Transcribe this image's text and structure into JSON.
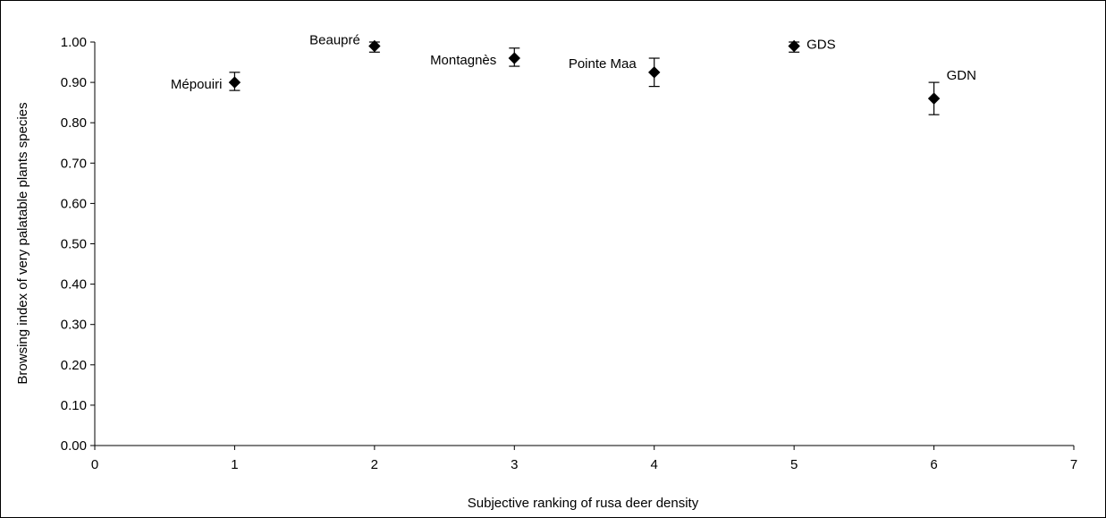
{
  "chart_data": {
    "type": "scatter",
    "title": "",
    "xlabel": "Subjective ranking of rusa deer density",
    "ylabel": "Browsing index of very palatable plants species",
    "xlim": [
      0,
      7
    ],
    "ylim": [
      0,
      1
    ],
    "x_ticks": [
      0,
      1,
      2,
      3,
      4,
      5,
      6,
      7
    ],
    "y_ticks": [
      "0.00",
      "0.10",
      "0.20",
      "0.30",
      "0.40",
      "0.50",
      "0.60",
      "0.70",
      "0.80",
      "0.90",
      "1.00"
    ],
    "grid": false,
    "legend": "none",
    "marker": "diamond",
    "marker_color": "#000000",
    "points": [
      {
        "x": 1,
        "y": 0.9,
        "err_low": 0.88,
        "err_high": 0.925,
        "label": "Mépouiri"
      },
      {
        "x": 2,
        "y": 0.99,
        "err_low": 0.975,
        "err_high": 1.0,
        "label": "Beaupré"
      },
      {
        "x": 3,
        "y": 0.96,
        "err_low": 0.94,
        "err_high": 0.985,
        "label": "Montagnès"
      },
      {
        "x": 4,
        "y": 0.925,
        "err_low": 0.89,
        "err_high": 0.96,
        "label": "Pointe Maa"
      },
      {
        "x": 5,
        "y": 0.99,
        "err_low": 0.975,
        "err_high": 1.0,
        "label": "GDS"
      },
      {
        "x": 6,
        "y": 0.86,
        "err_low": 0.82,
        "err_high": 0.9,
        "label": "GDN"
      }
    ]
  }
}
